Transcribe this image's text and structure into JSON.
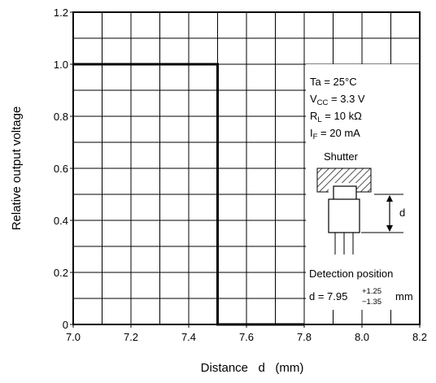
{
  "chart_data": {
    "type": "line",
    "title": "",
    "xlabel": "Distance   d   (mm)",
    "ylabel": "Relative output voltage",
    "xlim": [
      7.0,
      8.2
    ],
    "ylim": [
      0,
      1.2
    ],
    "x_ticks": [
      "7.0",
      "7.2",
      "7.4",
      "7.6",
      "7.8",
      "8.0",
      "8.2"
    ],
    "y_ticks": [
      "0",
      "0.2",
      "0.4",
      "0.6",
      "0.8",
      "1.0",
      "1.2"
    ],
    "x_minor_step": 0.1,
    "y_minor_step": 0.1,
    "grid": true,
    "series": [
      {
        "x": [
          7.0,
          7.5,
          7.5,
          7.8
        ],
        "y": [
          1.0,
          1.0,
          0,
          0
        ]
      }
    ],
    "conditions": {
      "ta": "Ta = 25°C",
      "vcc_main": "V",
      "vcc_sub": "CC",
      "vcc_rest": " = 3.3 V",
      "rl_main": "R",
      "rl_sub": "L",
      "rl_rest": " = 10 kΩ",
      "if_main": "I",
      "if_sub": "F",
      "if_rest": " = 20 mA"
    },
    "inset": {
      "shutter_label": "Shutter",
      "d_label": "d",
      "detection_label": "Detection position",
      "formula_prefix": "d = 7.95",
      "formula_plus": "+1.25",
      "formula_minus": "−1.35",
      "formula_unit": "mm"
    }
  }
}
